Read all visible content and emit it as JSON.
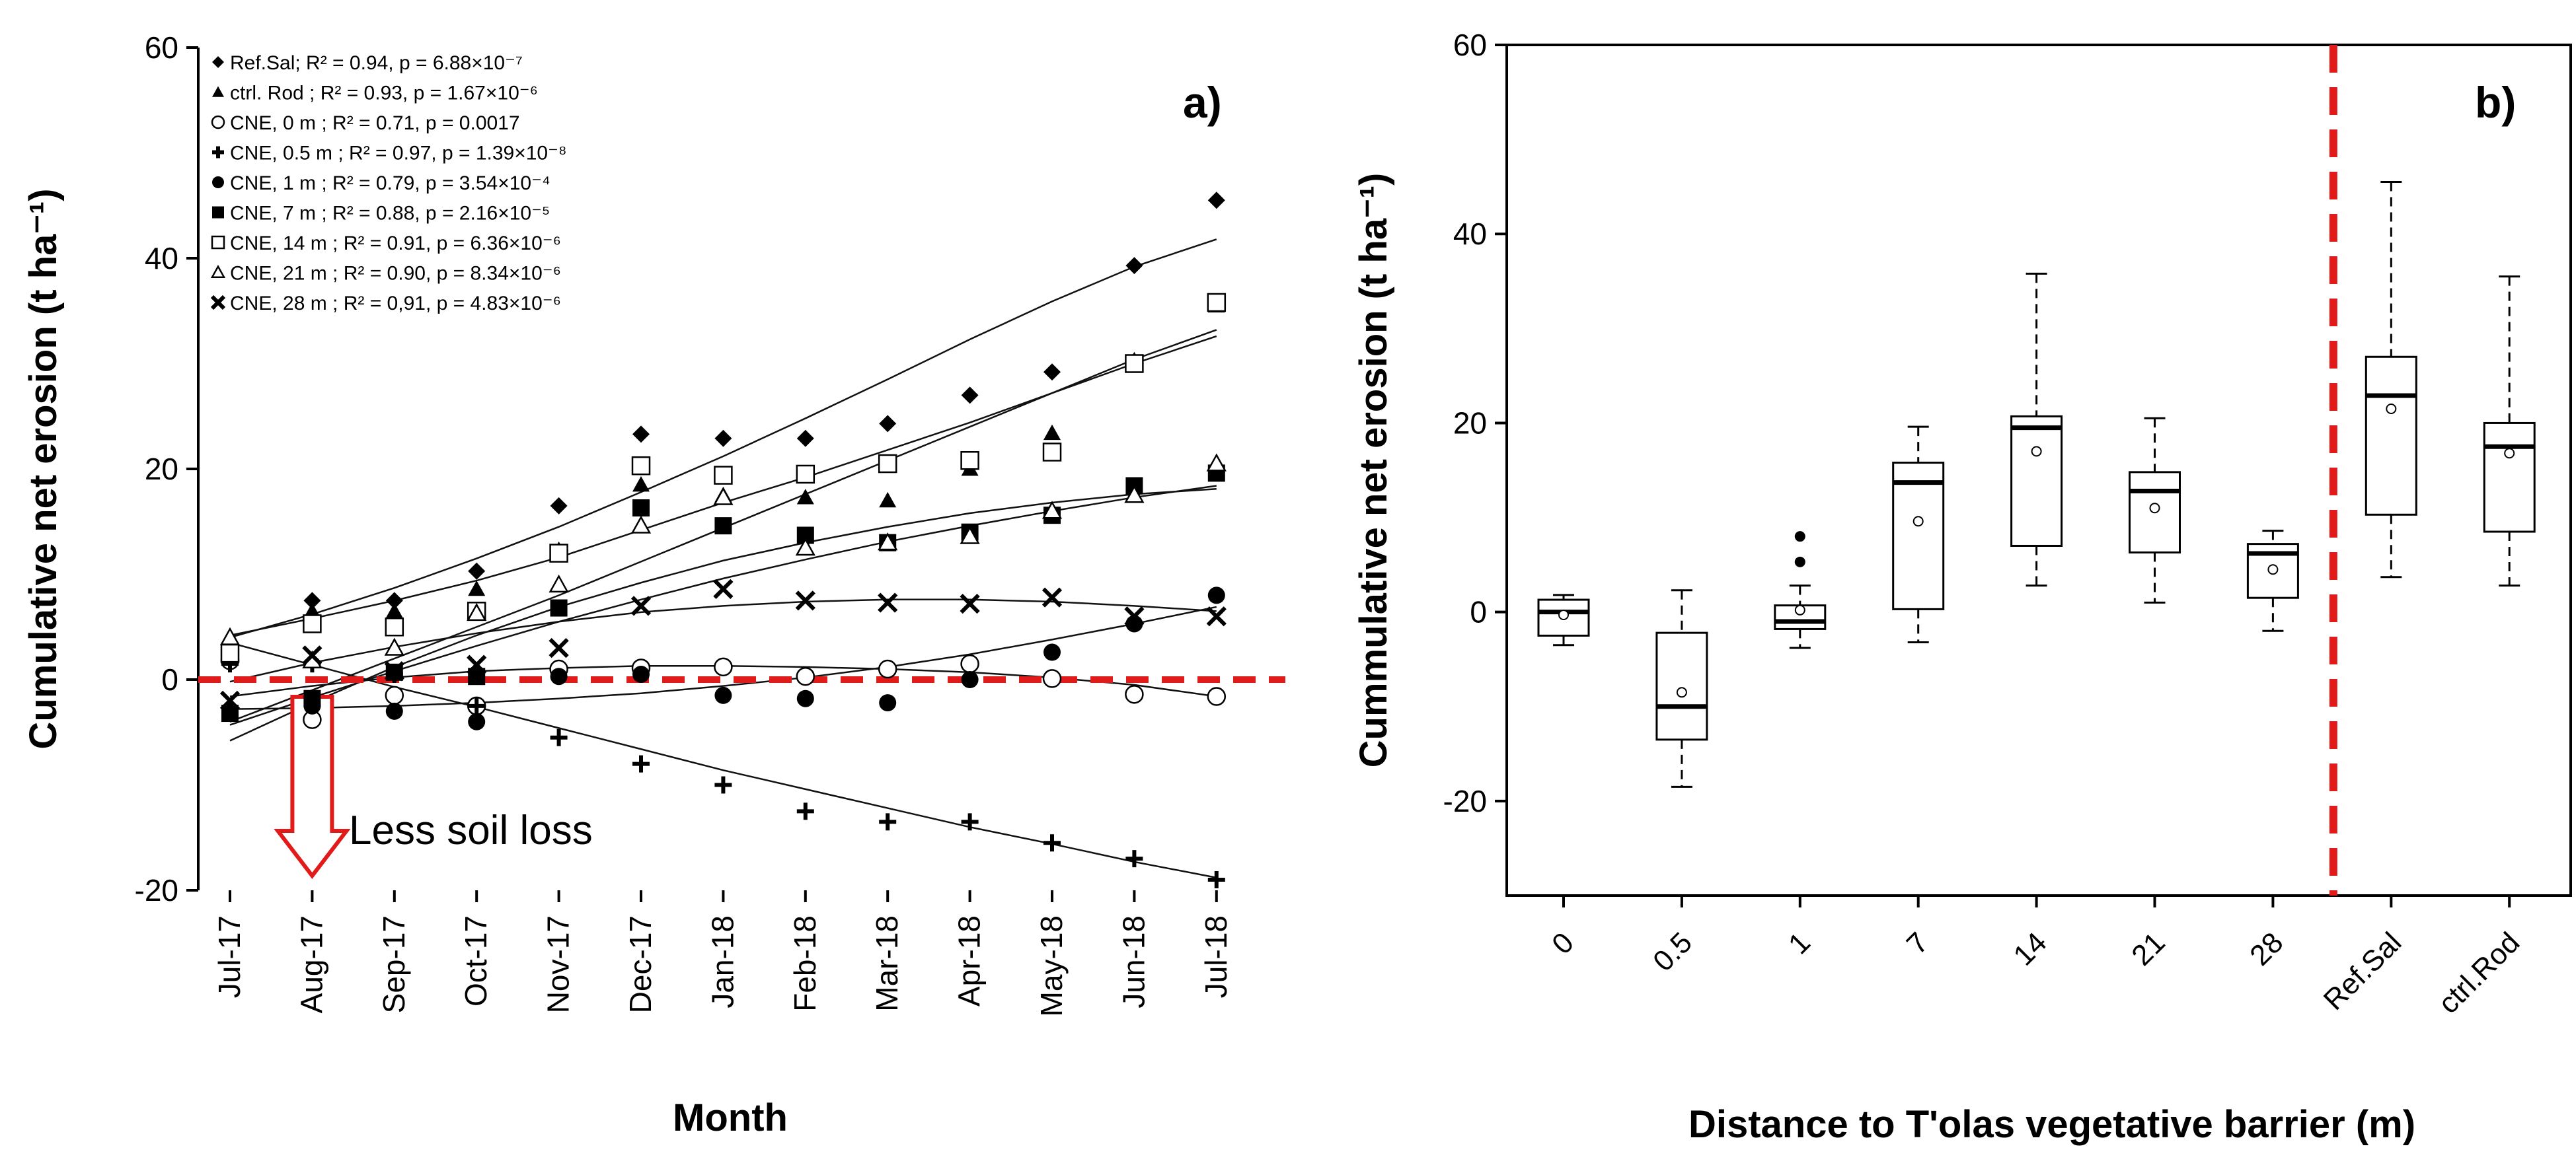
{
  "chart_data": [
    {
      "type": "scatter",
      "panel_label": "a)",
      "xlabel": "Month",
      "ylabel": "Cumulative net erosion (t ha⁻¹)",
      "categories": [
        "Jul-17",
        "Aug-17",
        "Sep-17",
        "Oct-17",
        "Nov-17",
        "Dec-17",
        "Jan-18",
        "Feb-18",
        "Mar-18",
        "Apr-18",
        "May-18",
        "Jun-18",
        "Jul-18"
      ],
      "ylim": [
        -20,
        60
      ],
      "yticks": [
        "-20",
        "0",
        "20",
        "40",
        "60"
      ],
      "reference_line": {
        "y": 0,
        "color": "#e11a1a",
        "style": "dashed"
      },
      "annotation": {
        "text": "Less soil loss",
        "color": "#e11a1a"
      },
      "legend": [
        {
          "marker": "diamond",
          "label": "Ref.Sal; R² = 0.94,  p = 6.88×10⁻⁷"
        },
        {
          "marker": "triangle",
          "label": "ctrl. Rod ; R² = 0.93,  p = 1.67×10⁻⁶"
        },
        {
          "marker": "open-circle",
          "label": "CNE, 0 m ; R² = 0.71,  p = 0.0017"
        },
        {
          "marker": "plus",
          "label": "CNE, 0.5 m ; R² = 0.97,  p = 1.39×10⁻⁸"
        },
        {
          "marker": "circle",
          "label": "CNE, 1 m ; R² = 0.79,  p = 3.54×10⁻⁴"
        },
        {
          "marker": "square",
          "label": "CNE, 7 m ; R² = 0.88,  p = 2.16×10⁻⁵"
        },
        {
          "marker": "open-square",
          "label": "CNE, 14 m ; R² = 0.91,  p = 6.36×10⁻⁶"
        },
        {
          "marker": "open-triangle",
          "label": "CNE, 21 m ; R² = 0.90, p = 8.34×10⁻⁶"
        },
        {
          "marker": "x",
          "label": "CNE, 28 m ; R² = 0,91,  p = 4.83×10⁻⁶"
        }
      ],
      "series": [
        {
          "name": "Ref.Sal",
          "marker": "diamond",
          "values": [
            3.5,
            7.5,
            7.5,
            10.3,
            16.5,
            23.3,
            22.9,
            22.9,
            24.3,
            27,
            29.2,
            39.3,
            45.5
          ],
          "fit": [
            4,
            6.2,
            8.7,
            11.5,
            14.5,
            17.8,
            21.2,
            24.8,
            28.5,
            32.3,
            35.9,
            39.2,
            41.8
          ]
        },
        {
          "name": "ctrl. Rod",
          "marker": "triangle",
          "values": [
            3.8,
            6.5,
            6.5,
            8.6,
            12.3,
            18.5,
            17.5,
            17.3,
            17,
            20,
            23.4,
            30.3,
            35.5
          ],
          "fit": [
            4.2,
            5.8,
            7.5,
            9.4,
            11.6,
            14.2,
            16.8,
            19.2,
            21.8,
            24.4,
            27.2,
            30,
            32.6
          ]
        },
        {
          "name": "CNE, 0 m",
          "marker": "open-circle",
          "values": [
            1.8,
            -3.8,
            -1.5,
            -2.5,
            1,
            1.1,
            1.2,
            0.3,
            1,
            1.5,
            0.1,
            -1.4,
            -1.6
          ],
          "fit": [
            -1.6,
            -0.6,
            0.2,
            0.8,
            1.1,
            1.3,
            1.3,
            1.2,
            1,
            0.7,
            0.2,
            -0.5,
            -1.6
          ]
        },
        {
          "name": "CNE, 0.5 m",
          "marker": "plus",
          "values": [
            1.5,
            1.5,
            0.5,
            -2.5,
            -5.5,
            -8,
            -10,
            -12.5,
            -13.5,
            -13.5,
            -15.5,
            -17,
            -19
          ],
          "fit": [
            3.5,
            1.4,
            -0.7,
            -2.6,
            -4.6,
            -6.6,
            -8.6,
            -10.4,
            -12.2,
            -14,
            -15.6,
            -17.3,
            -18.8
          ]
        },
        {
          "name": "CNE, 1 m",
          "marker": "circle",
          "values": [
            -3,
            -2.5,
            -3,
            -4,
            0.3,
            0.5,
            -1.5,
            -1.8,
            -2.2,
            0,
            2.6,
            5.3,
            8
          ],
          "fit": [
            -2.8,
            -2.7,
            -2.5,
            -2.2,
            -1.8,
            -1.3,
            -0.6,
            0.2,
            1.2,
            2.4,
            3.8,
            5.3,
            6.9
          ]
        },
        {
          "name": "CNE, 7 m",
          "marker": "square",
          "values": [
            -3.2,
            -1.8,
            0.7,
            0.3,
            6.8,
            16.3,
            14.6,
            13.7,
            13,
            14,
            15.6,
            18.4,
            19.6
          ],
          "fit": [
            -4.3,
            -1.7,
            0.8,
            3.2,
            5.5,
            7.6,
            9.6,
            11.4,
            13.1,
            14.6,
            16,
            17.3,
            18.4
          ]
        },
        {
          "name": "CNE, 14 m",
          "marker": "open-square",
          "values": [
            2.5,
            5.3,
            5,
            6.5,
            12,
            20.3,
            19.4,
            19.5,
            20.5,
            20.8,
            21.6,
            30,
            35.8
          ],
          "fit": [
            -4,
            -1,
            2,
            5,
            8,
            11.2,
            14.4,
            17.6,
            20.8,
            24,
            27.2,
            30.4,
            33.2
          ]
        },
        {
          "name": "CNE, 21 m",
          "marker": "open-triangle",
          "values": [
            4,
            1.8,
            3,
            6.3,
            9,
            14.6,
            17.3,
            12.5,
            13,
            13.6,
            16,
            17.5,
            20.5
          ],
          "fit": [
            -5.8,
            -2.2,
            1.2,
            4.2,
            6.9,
            9.2,
            11.3,
            13,
            14.5,
            15.8,
            16.8,
            17.6,
            18.1
          ]
        },
        {
          "name": "CNE, 28 m",
          "marker": "x",
          "values": [
            -2,
            2.3,
            0.8,
            1.4,
            3,
            7,
            8.6,
            7.5,
            7.3,
            7.2,
            7.8,
            6,
            6
          ],
          "fit": [
            -0.2,
            1.6,
            3.1,
            4.4,
            5.5,
            6.4,
            7,
            7.4,
            7.6,
            7.6,
            7.4,
            7,
            6.5
          ]
        }
      ]
    },
    {
      "type": "box",
      "panel_label": "b)",
      "xlabel": "Distance to T'olas vegetative barrier (m)",
      "ylabel": "Cummulative net erosion (t ha⁻¹)",
      "ylim": [
        -30,
        60
      ],
      "yticks": [
        "-20",
        "0",
        "20",
        "40",
        "60"
      ],
      "categories": [
        "0",
        "0.5",
        "1",
        "7",
        "14",
        "21",
        "28",
        "Ref.Sal",
        "ctrl.Rod"
      ],
      "divider": {
        "after_index": 6,
        "color": "#e11a1a",
        "style": "dashed"
      },
      "boxes": [
        {
          "whisker_low": -3.5,
          "q1": -2.5,
          "median": 0,
          "q3": 1.3,
          "whisker_high": 1.8,
          "mean": -0.3,
          "outliers": []
        },
        {
          "whisker_low": -18.5,
          "q1": -13.5,
          "median": -10,
          "q3": -2.2,
          "whisker_high": 2.3,
          "mean": -8.5,
          "outliers": []
        },
        {
          "whisker_low": -3.8,
          "q1": -1.8,
          "median": -1,
          "q3": 0.7,
          "whisker_high": 2.8,
          "mean": 0.2,
          "outliers": [
            5.3,
            8
          ]
        },
        {
          "whisker_low": -3.2,
          "q1": 0.3,
          "median": 13.7,
          "q3": 15.8,
          "whisker_high": 19.6,
          "mean": 9.6,
          "outliers": []
        },
        {
          "whisker_low": 2.8,
          "q1": 7,
          "median": 19.5,
          "q3": 20.7,
          "whisker_high": 35.8,
          "mean": 17,
          "outliers": []
        },
        {
          "whisker_low": 1,
          "q1": 6.3,
          "median": 12.8,
          "q3": 14.8,
          "whisker_high": 20.5,
          "mean": 11,
          "outliers": []
        },
        {
          "whisker_low": -2,
          "q1": 1.5,
          "median": 6.2,
          "q3": 7.2,
          "whisker_high": 8.6,
          "mean": 4.5,
          "outliers": []
        },
        {
          "whisker_low": 3.7,
          "q1": 10.3,
          "median": 22.9,
          "q3": 27,
          "whisker_high": 45.5,
          "mean": 21.5,
          "outliers": []
        },
        {
          "whisker_low": 2.8,
          "q1": 8.5,
          "median": 17.5,
          "q3": 20,
          "whisker_high": 35.5,
          "mean": 16.8,
          "outliers": []
        }
      ]
    }
  ]
}
